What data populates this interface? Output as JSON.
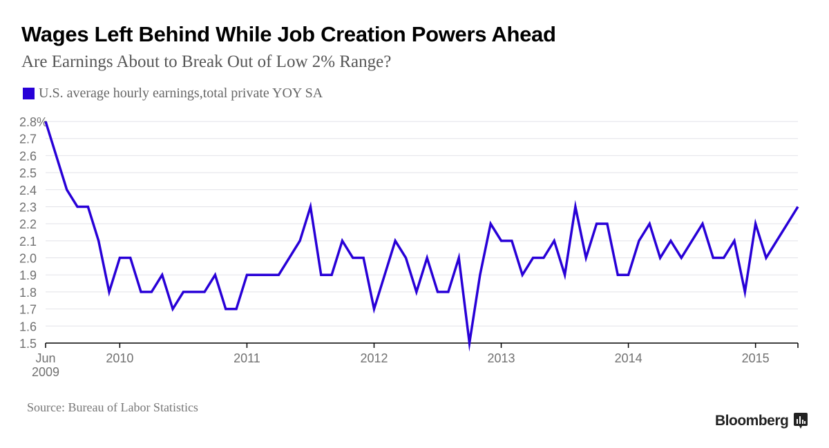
{
  "header": {
    "title": "Wages Left Behind While Job Creation Powers Ahead",
    "subtitle": "Are Earnings About to Break Out of Low 2% Range?"
  },
  "legend": {
    "label": "U.S. average hourly earnings,total private YOY SA",
    "color": "#2800d7"
  },
  "footer": {
    "source": "Source: Bureau of Labor Statistics",
    "brand": "Bloomberg",
    "brand_icon": "bloomberg-chart-icon"
  },
  "chart_data": {
    "type": "line",
    "title": "Wages Left Behind While Job Creation Powers Ahead",
    "subtitle": "Are Earnings About to Break Out of Low 2% Range?",
    "xlabel": "",
    "ylabel": "",
    "ylim": [
      1.5,
      2.8
    ],
    "yticks": [
      "2.8%",
      "2.7",
      "2.6",
      "2.5",
      "2.4",
      "2.3",
      "2.2",
      "2.1",
      "2.0",
      "1.9",
      "1.8",
      "1.7",
      "1.6",
      "1.5"
    ],
    "ytick_values": [
      2.8,
      2.7,
      2.6,
      2.5,
      2.4,
      2.3,
      2.2,
      2.1,
      2.0,
      1.9,
      1.8,
      1.7,
      1.6,
      1.5
    ],
    "xticks": [
      {
        "label": "Jun",
        "label2": "2009",
        "month_index": 0
      },
      {
        "label": "2010",
        "label2": "",
        "month_index": 7
      },
      {
        "label": "2011",
        "label2": "",
        "month_index": 19
      },
      {
        "label": "2012",
        "label2": "",
        "month_index": 31
      },
      {
        "label": "2013",
        "label2": "",
        "month_index": 43
      },
      {
        "label": "2014",
        "label2": "",
        "month_index": 55
      },
      {
        "label": "2015",
        "label2": "",
        "month_index": 67
      }
    ],
    "x_start": "2009-06",
    "x_end": "2015-05",
    "grid": true,
    "legend_position": "top-left",
    "series": [
      {
        "name": "U.S. average hourly earnings,total private YOY SA",
        "color": "#2800d7",
        "x": [
          "2009-06",
          "2009-07",
          "2009-08",
          "2009-09",
          "2009-10",
          "2009-11",
          "2009-12",
          "2010-01",
          "2010-02",
          "2010-03",
          "2010-04",
          "2010-05",
          "2010-06",
          "2010-07",
          "2010-08",
          "2010-09",
          "2010-10",
          "2010-11",
          "2010-12",
          "2011-01",
          "2011-02",
          "2011-03",
          "2011-04",
          "2011-05",
          "2011-06",
          "2011-07",
          "2011-08",
          "2011-09",
          "2011-10",
          "2011-11",
          "2011-12",
          "2012-01",
          "2012-02",
          "2012-03",
          "2012-04",
          "2012-05",
          "2012-06",
          "2012-07",
          "2012-08",
          "2012-09",
          "2012-10",
          "2012-11",
          "2012-12",
          "2013-01",
          "2013-02",
          "2013-03",
          "2013-04",
          "2013-05",
          "2013-06",
          "2013-07",
          "2013-08",
          "2013-09",
          "2013-10",
          "2013-11",
          "2013-12",
          "2014-01",
          "2014-02",
          "2014-03",
          "2014-04",
          "2014-05",
          "2014-06",
          "2014-07",
          "2014-08",
          "2014-09",
          "2014-10",
          "2014-11",
          "2014-12",
          "2015-01",
          "2015-02",
          "2015-03",
          "2015-04",
          "2015-05"
        ],
        "values": [
          2.8,
          2.6,
          2.4,
          2.3,
          2.3,
          2.1,
          1.8,
          2.0,
          2.0,
          1.8,
          1.8,
          1.9,
          1.7,
          1.8,
          1.8,
          1.8,
          1.9,
          1.7,
          1.7,
          1.9,
          1.9,
          1.9,
          1.9,
          2.0,
          2.1,
          2.3,
          1.9,
          1.9,
          2.1,
          2.0,
          2.0,
          1.7,
          1.9,
          2.1,
          2.0,
          1.8,
          2.0,
          1.8,
          1.8,
          2.0,
          1.5,
          1.9,
          2.2,
          2.1,
          2.1,
          1.9,
          2.0,
          2.0,
          2.1,
          1.9,
          2.3,
          2.0,
          2.2,
          2.2,
          1.9,
          1.9,
          2.1,
          2.2,
          2.0,
          2.1,
          2.0,
          2.1,
          2.2,
          2.0,
          2.0,
          2.1,
          1.8,
          2.2,
          2.0,
          2.1,
          2.2,
          2.3
        ]
      }
    ]
  }
}
